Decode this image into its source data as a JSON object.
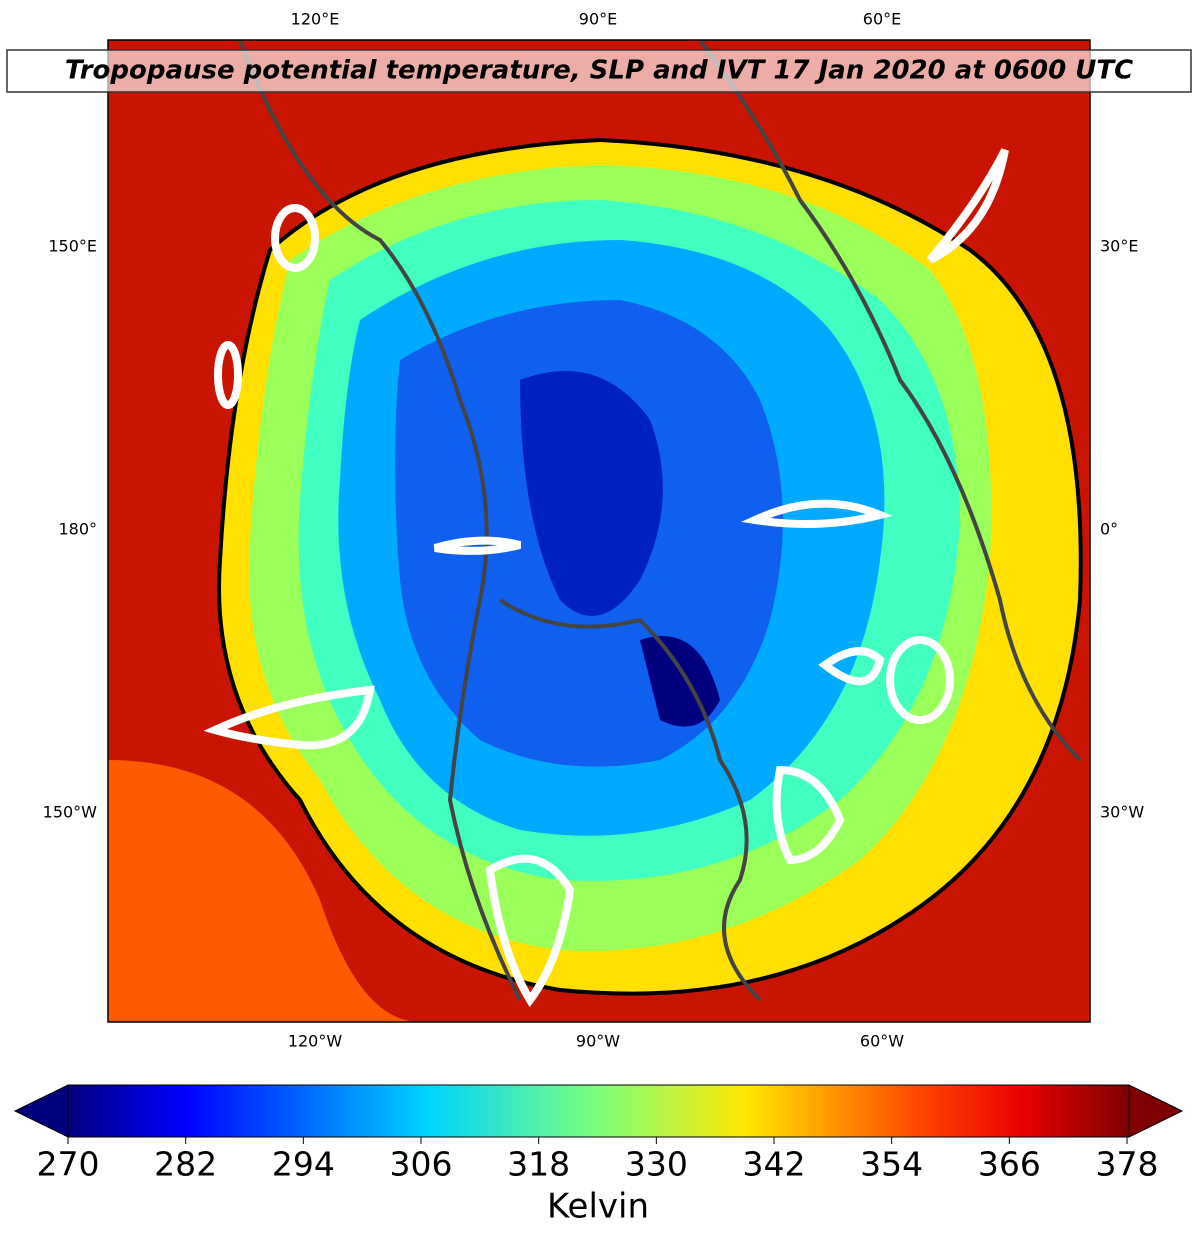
{
  "title": "Tropopause potential temperature, SLP and IVT 17 Jan 2020 at 0600 UTC",
  "map": {
    "top_labels": [
      "120°E",
      "90°E",
      "60°E"
    ],
    "bottom_labels": [
      "120°W",
      "90°W",
      "60°W"
    ],
    "left_labels": [
      "150°E",
      "180°",
      "150°W"
    ],
    "right_labels": [
      "30°E",
      "0°",
      "30°W"
    ]
  },
  "colorbar": {
    "lim": [
      270,
      378
    ],
    "ticks": [
      270,
      282,
      294,
      306,
      318,
      330,
      342,
      354,
      366,
      378
    ],
    "label": "Kelvin"
  }
}
